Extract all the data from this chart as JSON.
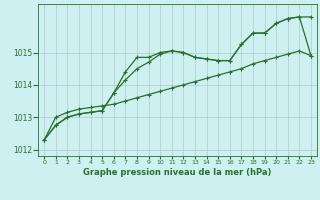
{
  "xlabel": "Graphe pression niveau de la mer (hPa)",
  "x_values": [
    0,
    1,
    2,
    3,
    4,
    5,
    6,
    7,
    8,
    9,
    10,
    11,
    12,
    13,
    14,
    15,
    16,
    17,
    18,
    19,
    20,
    21,
    22,
    23
  ],
  "line1": [
    1012.3,
    1012.75,
    1013.0,
    1013.1,
    1013.15,
    1013.2,
    1013.75,
    1014.4,
    1014.85,
    1014.85,
    1015.0,
    1015.05,
    1015.0,
    1014.85,
    1014.8,
    1014.75,
    1014.75,
    1015.25,
    1015.6,
    1015.6,
    1015.9,
    1016.05,
    1016.1,
    1014.9
  ],
  "line2": [
    1012.3,
    1012.75,
    1013.0,
    1013.1,
    1013.15,
    1013.2,
    1013.75,
    1014.15,
    1014.5,
    1014.7,
    1014.95,
    1015.05,
    1015.0,
    1014.85,
    1014.8,
    1014.75,
    1014.75,
    1015.25,
    1015.6,
    1015.6,
    1015.9,
    1016.05,
    1016.1,
    1016.1
  ],
  "line3": [
    1012.3,
    1013.0,
    1013.15,
    1013.25,
    1013.3,
    1013.35,
    1013.4,
    1013.5,
    1013.6,
    1013.7,
    1013.8,
    1013.9,
    1014.0,
    1014.1,
    1014.2,
    1014.3,
    1014.4,
    1014.5,
    1014.65,
    1014.75,
    1014.85,
    1014.95,
    1015.05,
    1014.9
  ],
  "line_color": "#2d6e2d",
  "marker": "+",
  "marker_size": 3,
  "ylim": [
    1011.8,
    1016.5
  ],
  "yticks": [
    1012,
    1013,
    1014,
    1015
  ],
  "bg_color": "#cdf0f0",
  "grid_color": "#b0c8c8",
  "line_width": 0.9
}
